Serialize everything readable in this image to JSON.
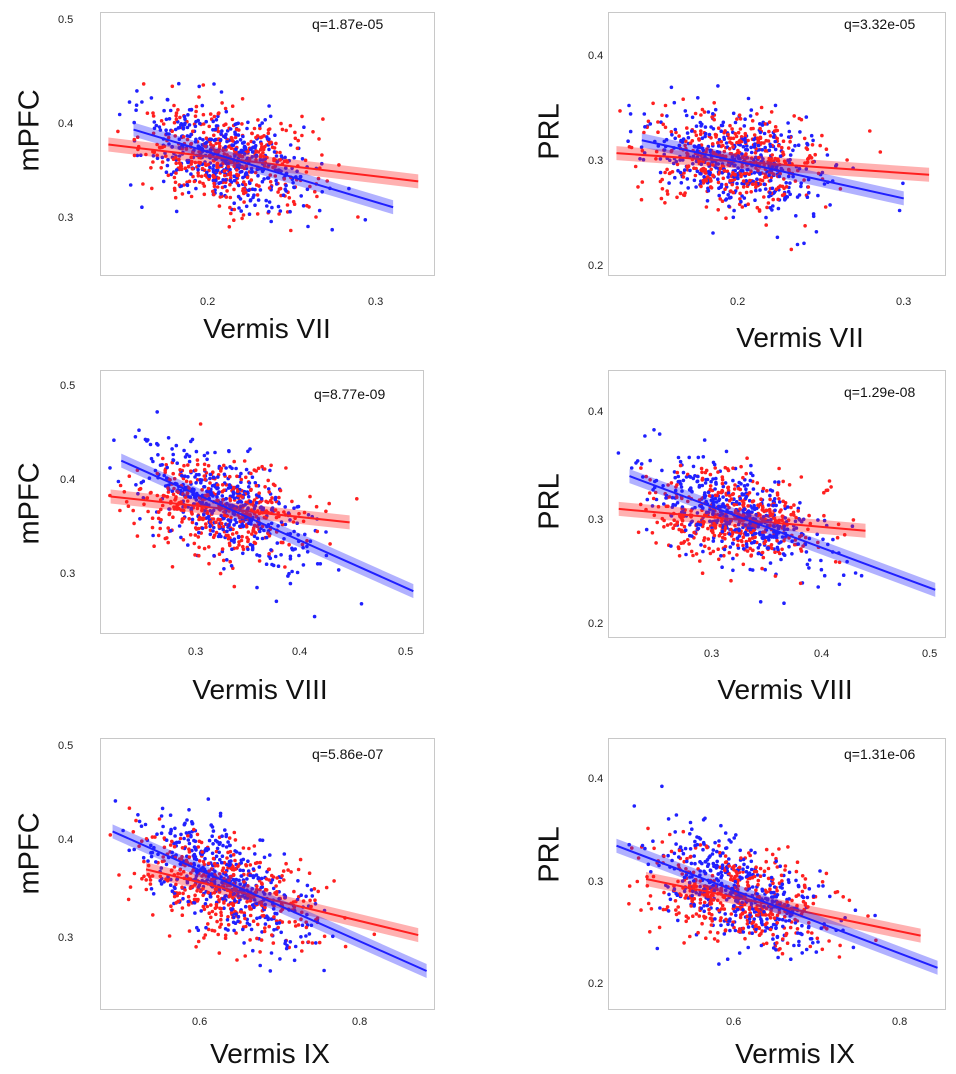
{
  "chart_data": [
    {
      "type": "scatter",
      "ylabel": "mPFC",
      "xlabel": "Vermis VII",
      "annotation": "q=1.87e-05",
      "xticks": [
        "0.2",
        "0.3"
      ],
      "yticks": [
        "0.5",
        "0.4",
        "0.3"
      ],
      "xlim": [
        0.135,
        0.335
      ],
      "ylim": [
        0.245,
        0.51
      ],
      "series": [
        {
          "color": "#ff2020",
          "fit": [
            [
              0.14,
              0.377
            ],
            [
              0.325,
              0.34
            ]
          ]
        },
        {
          "color": "#2020ff",
          "fit": [
            [
              0.155,
              0.392
            ],
            [
              0.31,
              0.314
            ]
          ]
        }
      ]
    },
    {
      "type": "scatter",
      "ylabel": "PRL",
      "xlabel": "Vermis VII",
      "annotation": "q=3.32e-05",
      "xticks": [
        "0.2",
        "0.3"
      ],
      "yticks": [
        "0.4",
        "0.3",
        "0.2"
      ],
      "xlim": [
        0.135,
        0.335
      ],
      "ylim": [
        0.195,
        0.44
      ],
      "series": [
        {
          "color": "#ff2020",
          "fit": [
            [
              0.14,
              0.309
            ],
            [
              0.325,
              0.289
            ]
          ]
        },
        {
          "color": "#2020ff",
          "fit": [
            [
              0.155,
              0.321
            ],
            [
              0.31,
              0.267
            ]
          ]
        }
      ]
    },
    {
      "type": "scatter",
      "ylabel": "mPFC",
      "xlabel": "Vermis VIII",
      "annotation": "q=8.77e-09",
      "xticks": [
        "0.3",
        "0.4",
        "0.5"
      ],
      "yticks": [
        "0.5",
        "0.4",
        "0.3"
      ],
      "xlim": [
        0.215,
        0.52
      ],
      "ylim": [
        0.245,
        0.51
      ],
      "series": [
        {
          "color": "#ff2020",
          "fit": [
            [
              0.225,
              0.383
            ],
            [
              0.45,
              0.357
            ]
          ]
        },
        {
          "color": "#2020ff",
          "fit": [
            [
              0.235,
              0.419
            ],
            [
              0.51,
              0.288
            ]
          ]
        }
      ]
    },
    {
      "type": "scatter",
      "ylabel": "PRL",
      "xlabel": "Vermis VIII",
      "annotation": "q=1.29e-08",
      "xticks": [
        "0.3",
        "0.4",
        "0.5"
      ],
      "yticks": [
        "0.4",
        "0.3",
        "0.2"
      ],
      "xlim": [
        0.225,
        0.54
      ],
      "ylim": [
        0.195,
        0.44
      ],
      "series": [
        {
          "color": "#ff2020",
          "fit": [
            [
              0.235,
              0.313
            ],
            [
              0.465,
              0.293
            ]
          ]
        },
        {
          "color": "#2020ff",
          "fit": [
            [
              0.245,
              0.343
            ],
            [
              0.53,
              0.239
            ]
          ]
        }
      ]
    },
    {
      "type": "scatter",
      "ylabel": "mPFC",
      "xlabel": "Vermis IX",
      "annotation": "q=5.86e-07",
      "xticks": [
        "0.6",
        "0.8"
      ],
      "yticks": [
        "0.5",
        "0.4",
        "0.3"
      ],
      "xlim": [
        0.48,
        0.88
      ],
      "ylim": [
        0.245,
        0.51
      ],
      "series": [
        {
          "color": "#ff2020",
          "fit": [
            [
              0.535,
              0.382
            ],
            [
              0.86,
              0.318
            ]
          ]
        },
        {
          "color": "#2020ff",
          "fit": [
            [
              0.495,
              0.419
            ],
            [
              0.87,
              0.283
            ]
          ]
        }
      ]
    },
    {
      "type": "scatter",
      "ylabel": "PRL",
      "xlabel": "Vermis IX",
      "annotation": "q=1.31e-06",
      "xticks": [
        "0.6",
        "0.8"
      ],
      "yticks": [
        "0.4",
        "0.3",
        "0.2"
      ],
      "xlim": [
        0.48,
        0.88
      ],
      "ylim": [
        0.195,
        0.44
      ],
      "series": [
        {
          "color": "#ff2020",
          "fit": [
            [
              0.525,
              0.313
            ],
            [
              0.85,
              0.262
            ]
          ]
        },
        {
          "color": "#2020ff",
          "fit": [
            [
              0.49,
              0.343
            ],
            [
              0.87,
              0.233
            ]
          ]
        }
      ]
    }
  ]
}
